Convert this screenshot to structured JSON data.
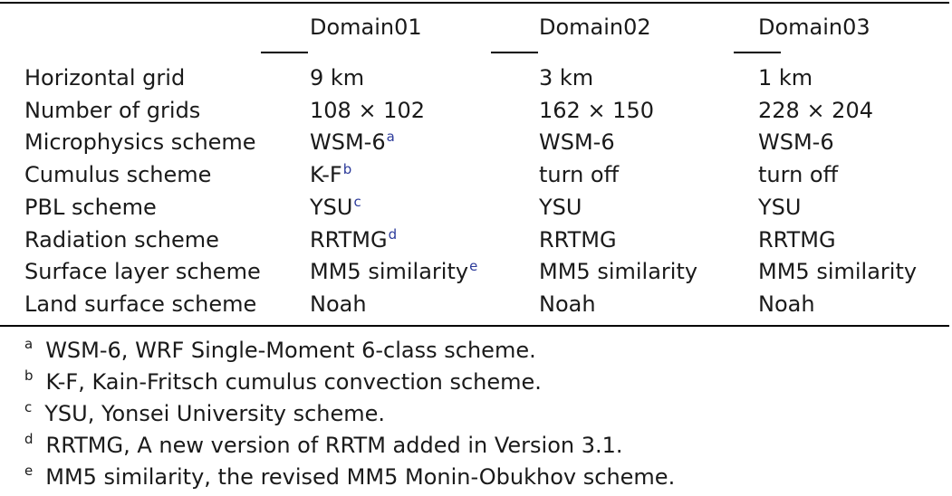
{
  "table": {
    "headers": [
      "",
      "Domain01",
      "Domain02",
      "Domain03"
    ],
    "rows": [
      {
        "label": "Horizontal grid",
        "d1": "9 km",
        "d1_sup": "",
        "d2": "3 km",
        "d3": "1 km"
      },
      {
        "label": "Number of grids",
        "d1": "108 × 102",
        "d1_sup": "",
        "d2": "162 × 150",
        "d3": "228 × 204"
      },
      {
        "label": "Microphysics scheme",
        "d1": "WSM-6",
        "d1_sup": "a",
        "d2": "WSM-6",
        "d3": "WSM-6"
      },
      {
        "label": "Cumulus scheme",
        "d1": "K-F",
        "d1_sup": "b",
        "d2": "turn off",
        "d3": "turn off"
      },
      {
        "label": "PBL scheme",
        "d1": "YSU",
        "d1_sup": "c",
        "d2": "YSU",
        "d3": "YSU"
      },
      {
        "label": "Radiation scheme",
        "d1": "RRTMG",
        "d1_sup": "d",
        "d2": "RRTMG",
        "d3": "RRTMG"
      },
      {
        "label": "Surface layer scheme",
        "d1": "MM5 similarity",
        "d1_sup": "e",
        "d2": "MM5 similarity",
        "d3": "MM5 similarity"
      },
      {
        "label": "Land surface scheme",
        "d1": "Noah",
        "d1_sup": "",
        "d2": "Noah",
        "d3": "Noah"
      }
    ]
  },
  "footnotes": [
    {
      "mark": "a",
      "text": "WSM-6, WRF Single-Moment 6-class scheme."
    },
    {
      "mark": "b",
      "text": "K-F, Kain-Fritsch cumulus convection scheme."
    },
    {
      "mark": "c",
      "text": "YSU, Yonsei University scheme."
    },
    {
      "mark": "d",
      "text": "RRTMG, A new version of RRTM added in Version 3.1."
    },
    {
      "mark": "e",
      "text": "MM5 similarity, the revised MM5 Monin-Obukhov scheme."
    }
  ],
  "colors": {
    "rule": "#000000",
    "text": "#1a1a1a",
    "footnote_link": "#2b3a9a"
  }
}
